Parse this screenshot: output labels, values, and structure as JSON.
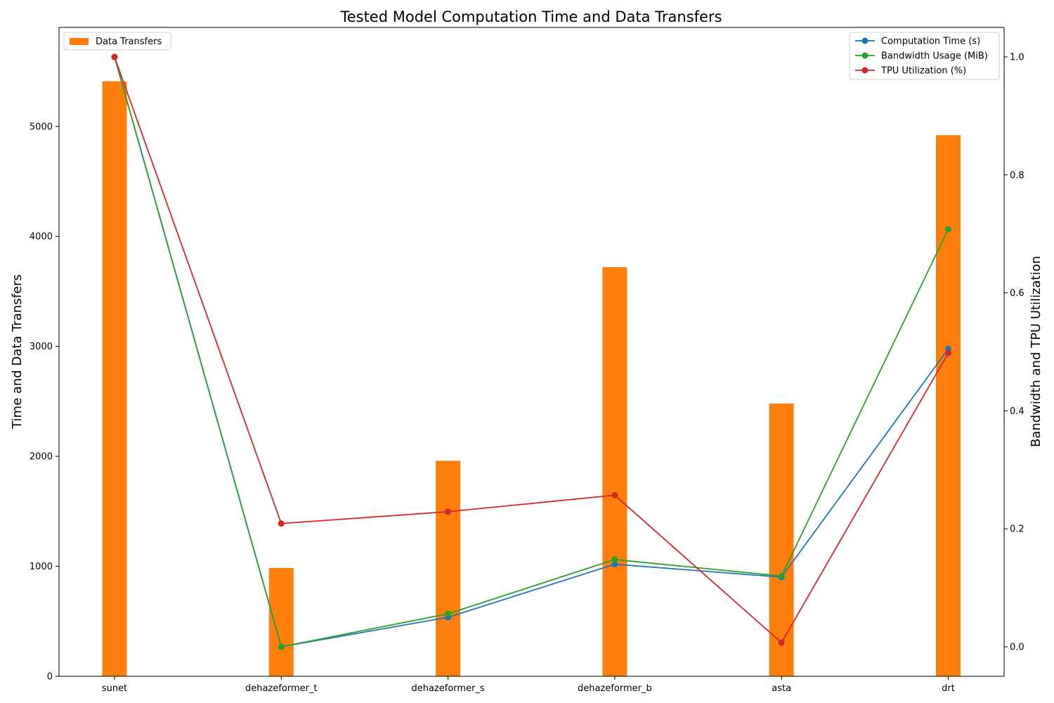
{
  "chart_data": {
    "type": "bar",
    "title": "Tested Model Computation Time and Data Transfers",
    "categories": [
      "sunet",
      "dehazeformer_t",
      "dehazeformer_s",
      "dehazeformer_b",
      "asta",
      "drt"
    ],
    "left_axis": {
      "label": "Time and Data Transfers",
      "ylim": [
        0,
        5900
      ],
      "ticks": [
        0,
        1000,
        2000,
        3000,
        4000,
        5000
      ]
    },
    "right_axis": {
      "label": "Bandwidth and TPU Utilization",
      "ylim": [
        -0.05,
        1.05
      ],
      "ticks": [
        "0.0",
        "0.2",
        "0.4",
        "0.6",
        "0.8",
        "1.0"
      ]
    },
    "bar_series": {
      "name": "Data Transfers",
      "color": "#ff7f0e",
      "axis": "left",
      "values": [
        5410,
        985,
        1960,
        3720,
        2480,
        4920
      ]
    },
    "line_series": [
      {
        "name": "Computation Time (s)",
        "color": "#1f77b4",
        "axis": "right",
        "values": [
          1.0,
          0.0,
          0.05,
          0.14,
          0.118,
          0.505
        ]
      },
      {
        "name": "Bandwidth Usage (MiB)",
        "color": "#2ca02c",
        "axis": "right",
        "values": [
          1.0,
          0.0,
          0.056,
          0.148,
          0.12,
          0.708
        ]
      },
      {
        "name": "TPU Utilization (%)",
        "color": "#d62728",
        "axis": "right",
        "values": [
          1.0,
          0.209,
          0.229,
          0.257,
          0.007,
          0.498
        ]
      }
    ],
    "legends": {
      "bars": "upper-left",
      "lines": "upper-right"
    },
    "grid": false
  }
}
